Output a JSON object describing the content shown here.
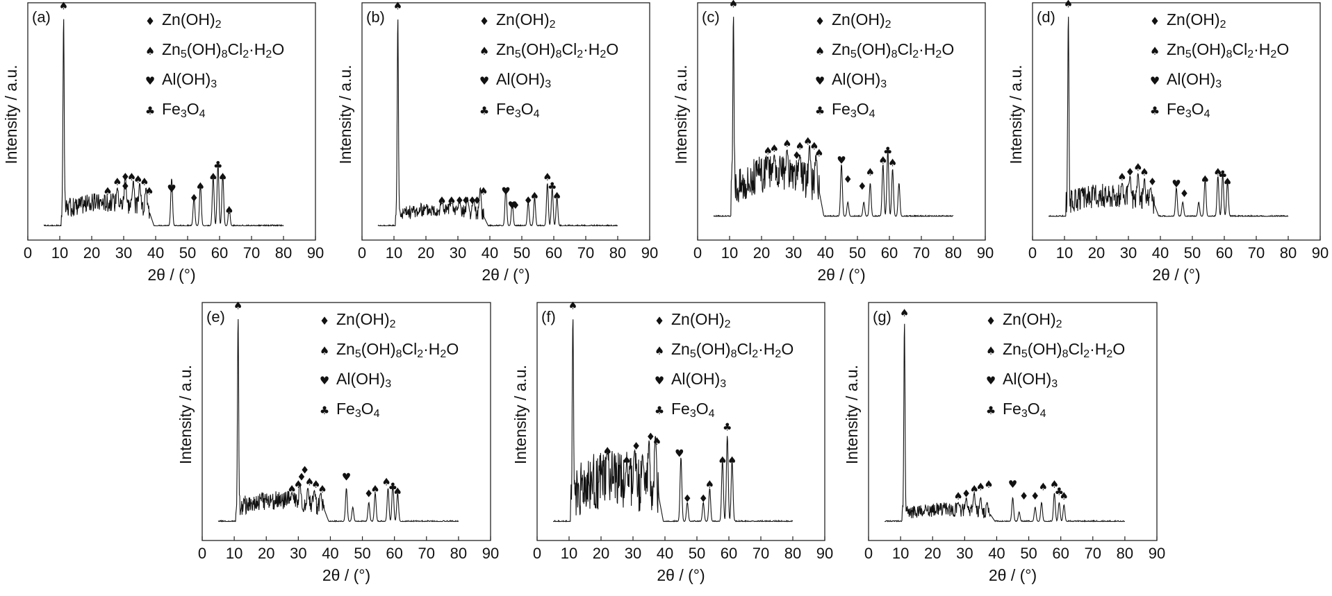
{
  "legend": [
    {
      "symbol": "♦",
      "parts": [
        [
          "Zn(OH)",
          ""
        ],
        [
          "2",
          "sub"
        ]
      ]
    },
    {
      "symbol": "♠",
      "parts": [
        [
          "Zn",
          ""
        ],
        [
          "5",
          "sub"
        ],
        [
          "(OH)",
          ""
        ],
        [
          "8",
          "sub"
        ],
        [
          "Cl",
          ""
        ],
        [
          "2",
          "sub"
        ],
        [
          "·H",
          ""
        ],
        [
          "2",
          "sub"
        ],
        [
          "O",
          ""
        ]
      ]
    },
    {
      "symbol": "♥",
      "parts": [
        [
          "Al(OH)",
          ""
        ],
        [
          "3",
          "sub"
        ]
      ]
    },
    {
      "symbol": "♣",
      "parts": [
        [
          "Fe",
          ""
        ],
        [
          "3",
          "sub"
        ],
        [
          "O",
          ""
        ],
        [
          "4",
          "sub"
        ]
      ]
    }
  ],
  "chart_data": [
    {
      "type": "line",
      "label": "(a)",
      "xlabel": "2θ / (°)",
      "ylabel": "Intensity / a.u.",
      "xlim": [
        0,
        90
      ],
      "ylim": [
        0,
        100
      ],
      "xticks": [
        0,
        10,
        20,
        30,
        40,
        50,
        60,
        70,
        80,
        90
      ],
      "baseline": 6,
      "band": {
        "from": 10.5,
        "to": 38,
        "level": 16,
        "amp": 4
      },
      "end": 80,
      "peaks": [
        [
          11.2,
          95
        ],
        [
          28,
          22
        ],
        [
          30.5,
          28
        ],
        [
          33,
          25
        ],
        [
          35,
          24
        ],
        [
          37,
          22
        ],
        [
          45,
          26
        ],
        [
          52,
          18
        ],
        [
          54,
          24
        ],
        [
          58,
          27
        ],
        [
          59.5,
          32
        ],
        [
          61,
          28
        ],
        [
          63,
          14
        ]
      ],
      "markers": [
        [
          "♠",
          11.2,
          96
        ],
        [
          "♠",
          25,
          18
        ],
        [
          "♠",
          28,
          22
        ],
        [
          "♦",
          30.5,
          20
        ],
        [
          "♦",
          30.5,
          24
        ],
        [
          "♠",
          32.5,
          24
        ],
        [
          "♠",
          34.5,
          23
        ],
        [
          "♠",
          36.5,
          22
        ],
        [
          "♠",
          38,
          18
        ],
        [
          "♥",
          45,
          19
        ],
        [
          "♦",
          52,
          15
        ],
        [
          "♠",
          54,
          20
        ],
        [
          "♠",
          58,
          24
        ],
        [
          "♣",
          59.5,
          29
        ],
        [
          "♠",
          61,
          24
        ],
        [
          "♠",
          63,
          10
        ]
      ]
    },
    {
      "type": "line",
      "label": "(b)",
      "xlabel": "2θ / (°)",
      "ylabel": "Intensity / a.u.",
      "xlim": [
        0,
        90
      ],
      "ylim": [
        0,
        100
      ],
      "xticks": [
        0,
        10,
        20,
        30,
        40,
        50,
        60,
        70,
        80,
        90
      ],
      "baseline": 6,
      "band": {
        "from": 10.5,
        "to": 38,
        "level": 13,
        "amp": 3
      },
      "end": 80,
      "peaks": [
        [
          11.2,
          95
        ],
        [
          25,
          17
        ],
        [
          28,
          18
        ],
        [
          30.5,
          17
        ],
        [
          33,
          18
        ],
        [
          35,
          17
        ],
        [
          37,
          22
        ],
        [
          45,
          22
        ],
        [
          47,
          16
        ],
        [
          52,
          16
        ],
        [
          54,
          18
        ],
        [
          58,
          24
        ],
        [
          59.5,
          22
        ],
        [
          61,
          18
        ]
      ],
      "markers": [
        [
          "♠",
          11.2,
          96
        ],
        [
          "♠",
          25,
          14
        ],
        [
          "♠",
          28,
          14
        ],
        [
          "♦",
          30.5,
          14
        ],
        [
          "♦",
          32.5,
          14
        ],
        [
          "♦",
          34.5,
          14
        ],
        [
          "♦",
          36,
          14
        ],
        [
          "♠",
          38,
          18
        ],
        [
          "♥",
          45,
          18
        ],
        [
          "♥",
          47,
          12
        ],
        [
          "♦",
          48,
          12
        ],
        [
          "♦",
          52,
          14
        ],
        [
          "♠",
          54,
          16
        ],
        [
          "♠",
          58,
          24
        ],
        [
          "♣",
          59.5,
          20
        ],
        [
          "♠",
          61,
          16
        ]
      ]
    },
    {
      "type": "line",
      "label": "(c)",
      "xlabel": "2θ / (°)",
      "ylabel": "Intensity / a.u.",
      "xlim": [
        0,
        90
      ],
      "ylim": [
        0,
        100
      ],
      "xticks": [
        0,
        10,
        20,
        30,
        40,
        50,
        60,
        70,
        80,
        90
      ],
      "baseline": 10,
      "band": {
        "from": 10.5,
        "to": 38,
        "level": 28,
        "amp": 8
      },
      "end": 80,
      "peaks": [
        [
          11.2,
          96
        ],
        [
          22,
          35
        ],
        [
          24,
          36
        ],
        [
          28,
          38
        ],
        [
          32,
          36
        ],
        [
          35,
          40
        ],
        [
          37,
          36
        ],
        [
          45,
          32
        ],
        [
          47,
          16
        ],
        [
          52,
          16
        ],
        [
          54,
          24
        ],
        [
          58,
          32
        ],
        [
          59.5,
          38
        ],
        [
          61,
          30
        ],
        [
          63,
          24
        ]
      ],
      "markers": [
        [
          "♠",
          11.2,
          97
        ],
        [
          "♠",
          22,
          35
        ],
        [
          "♠",
          24,
          36
        ],
        [
          "♠",
          28,
          38
        ],
        [
          "♠",
          32,
          37
        ],
        [
          "♦",
          31,
          33
        ],
        [
          "♠",
          34.5,
          39
        ],
        [
          "♠",
          36.5,
          37
        ],
        [
          "♠",
          38,
          34
        ],
        [
          "♥",
          45,
          31
        ],
        [
          "♦",
          47,
          23
        ],
        [
          "♦",
          51.5,
          20
        ],
        [
          "♠",
          54,
          26
        ],
        [
          "♠",
          58,
          31
        ],
        [
          "♣",
          59.5,
          35
        ],
        [
          "♠",
          61,
          30
        ]
      ]
    },
    {
      "type": "line",
      "label": "(d)",
      "xlabel": "2θ / (°)",
      "ylabel": "Intensity / a.u.",
      "xlim": [
        0,
        90
      ],
      "ylim": [
        0,
        100
      ],
      "xticks": [
        0,
        10,
        20,
        30,
        40,
        50,
        60,
        70,
        80,
        90
      ],
      "baseline": 10,
      "band": {
        "from": 10.5,
        "to": 38,
        "level": 19,
        "amp": 5
      },
      "end": 80,
      "peaks": [
        [
          11.2,
          96
        ],
        [
          28,
          24
        ],
        [
          30.5,
          27
        ],
        [
          33,
          28
        ],
        [
          35,
          26
        ],
        [
          37,
          22
        ],
        [
          45,
          22
        ],
        [
          47,
          16
        ],
        [
          52,
          16
        ],
        [
          54,
          26
        ],
        [
          58,
          27
        ],
        [
          59.5,
          28
        ],
        [
          61,
          25
        ]
      ],
      "markers": [
        [
          "♠",
          11.2,
          97
        ],
        [
          "♠",
          28,
          24
        ],
        [
          "♦",
          30.5,
          26
        ],
        [
          "♠",
          33,
          28
        ],
        [
          "♠",
          35,
          26
        ],
        [
          "♦",
          37.5,
          22
        ],
        [
          "♥",
          45,
          21
        ],
        [
          "♦",
          47.5,
          17
        ],
        [
          "♠",
          54,
          23
        ],
        [
          "♠",
          58,
          26
        ],
        [
          "♣",
          59.5,
          25
        ],
        [
          "♠",
          61,
          22
        ]
      ]
    },
    {
      "type": "line",
      "label": "(e)",
      "xlabel": "2θ / (°)",
      "ylabel": "Intensity / a.u.",
      "xlim": [
        0,
        90
      ],
      "ylim": [
        0,
        100
      ],
      "xticks": [
        0,
        10,
        20,
        30,
        40,
        50,
        60,
        70,
        80,
        90
      ],
      "baseline": 8,
      "band": {
        "from": 10.5,
        "to": 38,
        "level": 17,
        "amp": 4
      },
      "end": 80,
      "peaks": [
        [
          11.2,
          95
        ],
        [
          28,
          20
        ],
        [
          30.5,
          24
        ],
        [
          33,
          22
        ],
        [
          35,
          21
        ],
        [
          37,
          20
        ],
        [
          45,
          22
        ],
        [
          47,
          14
        ],
        [
          52,
          16
        ],
        [
          54,
          20
        ],
        [
          58,
          22
        ],
        [
          59.5,
          24
        ],
        [
          61,
          20
        ]
      ],
      "markers": [
        [
          "♠",
          11.2,
          96
        ],
        [
          "♠",
          28,
          19
        ],
        [
          "♠",
          30,
          21
        ],
        [
          "♦",
          31,
          24
        ],
        [
          "♦",
          32,
          27
        ],
        [
          "♠",
          33.5,
          22
        ],
        [
          "♠",
          35.5,
          21
        ],
        [
          "♠",
          37.5,
          19
        ],
        [
          "♥",
          45,
          24
        ],
        [
          "♦",
          52,
          17
        ],
        [
          "♠",
          54,
          19
        ],
        [
          "♠",
          57.5,
          22
        ],
        [
          "♣",
          59.5,
          20
        ],
        [
          "♠",
          61,
          18
        ]
      ]
    },
    {
      "type": "line",
      "label": "(f)",
      "xlabel": "2θ / (°)",
      "ylabel": "Intensity / a.u.",
      "xlim": [
        0,
        90
      ],
      "ylim": [
        0,
        100
      ],
      "xticks": [
        0,
        10,
        20,
        30,
        40,
        50,
        60,
        70,
        80,
        90
      ],
      "baseline": 8,
      "band": {
        "from": 10.5,
        "to": 38,
        "level": 26,
        "amp": 12
      },
      "end": 80,
      "peaks": [
        [
          11.2,
          95
        ],
        [
          22,
          38
        ],
        [
          28,
          32
        ],
        [
          30.5,
          38
        ],
        [
          33,
          36
        ],
        [
          35,
          42
        ],
        [
          37,
          44
        ],
        [
          45,
          35
        ],
        [
          47,
          16
        ],
        [
          52,
          16
        ],
        [
          54,
          22
        ],
        [
          58,
          34
        ],
        [
          59.5,
          44
        ],
        [
          61,
          34
        ]
      ],
      "markers": [
        [
          "♠",
          11.2,
          96
        ],
        [
          "♠",
          22,
          35
        ],
        [
          "♠",
          28,
          31
        ],
        [
          "♦",
          31,
          37
        ],
        [
          "♦",
          35.5,
          41
        ],
        [
          "♠",
          37.5,
          39
        ],
        [
          "♥",
          44.5,
          34
        ],
        [
          "♦",
          47,
          15
        ],
        [
          "♦",
          52,
          15
        ],
        [
          "♠",
          54,
          21
        ],
        [
          "♠",
          58,
          31
        ],
        [
          "♣",
          59.5,
          45
        ],
        [
          "♠",
          61,
          31
        ]
      ]
    },
    {
      "type": "line",
      "label": "(g)",
      "xlabel": "2θ / (°)",
      "ylabel": "Intensity / a.u.",
      "xlim": [
        0,
        90
      ],
      "ylim": [
        0,
        100
      ],
      "xticks": [
        0,
        10,
        20,
        30,
        40,
        50,
        60,
        70,
        80,
        90
      ],
      "baseline": 8,
      "band": {
        "from": 10.5,
        "to": 38,
        "level": 13,
        "amp": 3
      },
      "end": 80,
      "peaks": [
        [
          11.2,
          93
        ],
        [
          28,
          16
        ],
        [
          30.5,
          18
        ],
        [
          33,
          20
        ],
        [
          35,
          18
        ],
        [
          37,
          16
        ],
        [
          45,
          18
        ],
        [
          47,
          12
        ],
        [
          52,
          14
        ],
        [
          54,
          16
        ],
        [
          58,
          20
        ],
        [
          59.5,
          16
        ],
        [
          61,
          15
        ]
      ],
      "markers": [
        [
          "♠",
          11.2,
          93
        ],
        [
          "♠",
          28,
          16
        ],
        [
          "♦",
          30.5,
          17
        ],
        [
          "♠",
          33,
          19
        ],
        [
          "♠",
          35,
          20
        ],
        [
          "♠",
          37.5,
          21
        ],
        [
          "♥",
          45,
          21
        ],
        [
          "♦",
          48.5,
          16
        ],
        [
          "♦",
          52,
          16
        ],
        [
          "♠",
          54.5,
          20
        ],
        [
          "♠",
          58,
          21
        ],
        [
          "♣",
          59.5,
          18
        ],
        [
          "♠",
          61,
          16
        ]
      ]
    }
  ]
}
